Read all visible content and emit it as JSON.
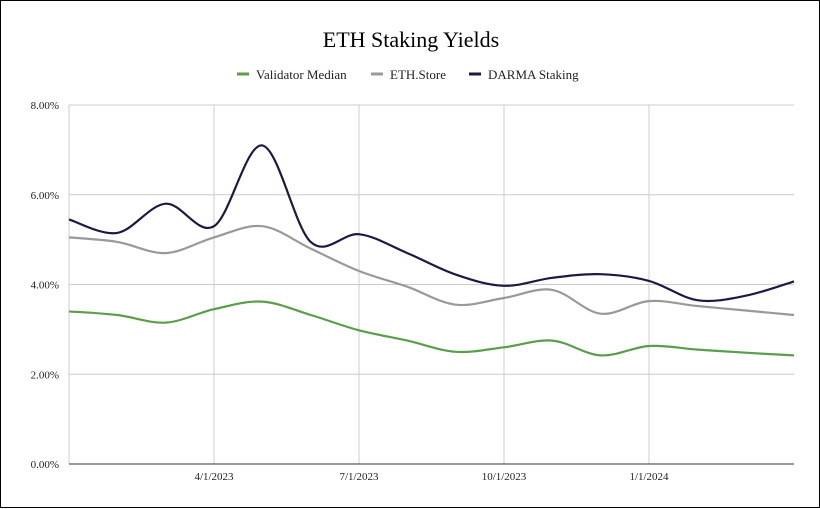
{
  "chart_data": {
    "type": "line",
    "title": "ETH Staking Yields",
    "xlabel": "",
    "ylabel": "",
    "x": [
      "1/1/2023",
      "2/1/2023",
      "3/1/2023",
      "4/1/2023",
      "5/1/2023",
      "6/1/2023",
      "7/1/2023",
      "8/1/2023",
      "9/1/2023",
      "10/1/2023",
      "11/1/2023",
      "12/1/2023",
      "1/1/2024",
      "2/1/2024",
      "3/1/2024",
      "4/1/2024"
    ],
    "x_tick_labels": [
      "4/1/2023",
      "7/1/2023",
      "10/1/2023",
      "1/1/2024"
    ],
    "y_tick_labels": [
      "0.00%",
      "2.00%",
      "4.00%",
      "6.00%",
      "8.00%"
    ],
    "ylim": [
      0,
      8
    ],
    "grid": true,
    "legend_position": "top",
    "series": [
      {
        "name": "Validator Median",
        "color": "#5a9e4a",
        "values": [
          3.4,
          3.32,
          3.15,
          3.45,
          3.62,
          3.32,
          2.98,
          2.75,
          2.5,
          2.6,
          2.75,
          2.42,
          2.63,
          2.55,
          2.48,
          2.42
        ]
      },
      {
        "name": "ETH.Store",
        "color": "#999999",
        "values": [
          5.05,
          4.95,
          4.7,
          5.05,
          5.3,
          4.8,
          4.3,
          3.95,
          3.55,
          3.7,
          3.88,
          3.35,
          3.63,
          3.52,
          3.42,
          3.32
        ]
      },
      {
        "name": "DARMA Staking",
        "color": "#1a1a45",
        "values": [
          5.45,
          5.15,
          5.8,
          5.3,
          7.1,
          4.95,
          5.12,
          4.7,
          4.22,
          3.97,
          4.15,
          4.23,
          4.08,
          3.65,
          3.75,
          4.07
        ]
      }
    ]
  }
}
